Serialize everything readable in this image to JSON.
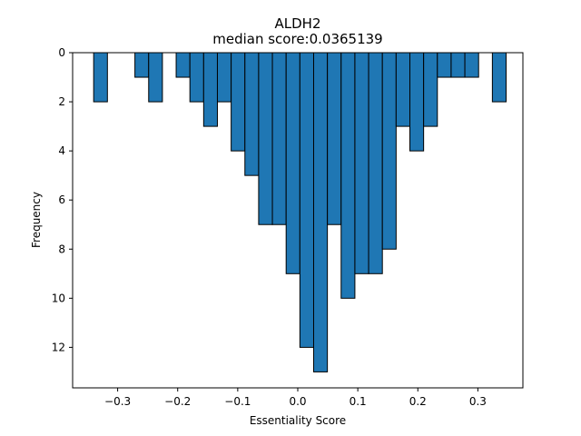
{
  "chart_data": {
    "type": "bar",
    "title": "ALDH2",
    "subtitle": "median score:0.0365139",
    "xlabel": "Essentiality Score",
    "ylabel": "Frequency",
    "xlim": [
      -0.375,
      0.375
    ],
    "ylim": [
      13.65,
      0
    ],
    "y_axis_inverted": true,
    "bin_width": 0.0229,
    "x_ticks": [
      -0.3,
      -0.2,
      -0.1,
      0.0,
      0.1,
      0.2,
      0.3
    ],
    "x_tick_labels": [
      "−0.3",
      "−0.2",
      "−0.1",
      "0.0",
      "0.1",
      "0.2",
      "0.3"
    ],
    "y_ticks": [
      0,
      2,
      4,
      6,
      8,
      10,
      12
    ],
    "y_tick_labels": [
      "0",
      "2",
      "4",
      "6",
      "8",
      "10",
      "12"
    ],
    "bars": [
      {
        "x": -0.3285,
        "value": 2
      },
      {
        "x": -0.2598,
        "value": 1
      },
      {
        "x": -0.2369,
        "value": 2
      },
      {
        "x": -0.1911,
        "value": 1
      },
      {
        "x": -0.1682,
        "value": 2
      },
      {
        "x": -0.1453,
        "value": 3
      },
      {
        "x": -0.1224,
        "value": 2
      },
      {
        "x": -0.0995,
        "value": 4
      },
      {
        "x": -0.0766,
        "value": 5
      },
      {
        "x": -0.0537,
        "value": 7
      },
      {
        "x": -0.0308,
        "value": 7
      },
      {
        "x": -0.0079,
        "value": 9
      },
      {
        "x": 0.015,
        "value": 12
      },
      {
        "x": 0.0379,
        "value": 13
      },
      {
        "x": 0.0608,
        "value": 7
      },
      {
        "x": 0.0837,
        "value": 10
      },
      {
        "x": 0.1066,
        "value": 9
      },
      {
        "x": 0.1295,
        "value": 9
      },
      {
        "x": 0.1524,
        "value": 8
      },
      {
        "x": 0.1753,
        "value": 3
      },
      {
        "x": 0.1982,
        "value": 4
      },
      {
        "x": 0.2211,
        "value": 3
      },
      {
        "x": 0.244,
        "value": 1
      },
      {
        "x": 0.2669,
        "value": 1
      },
      {
        "x": 0.2898,
        "value": 1
      },
      {
        "x": 0.3356,
        "value": 2
      }
    ],
    "bar_color": "#1f77b4",
    "edge_color": "#000000"
  }
}
